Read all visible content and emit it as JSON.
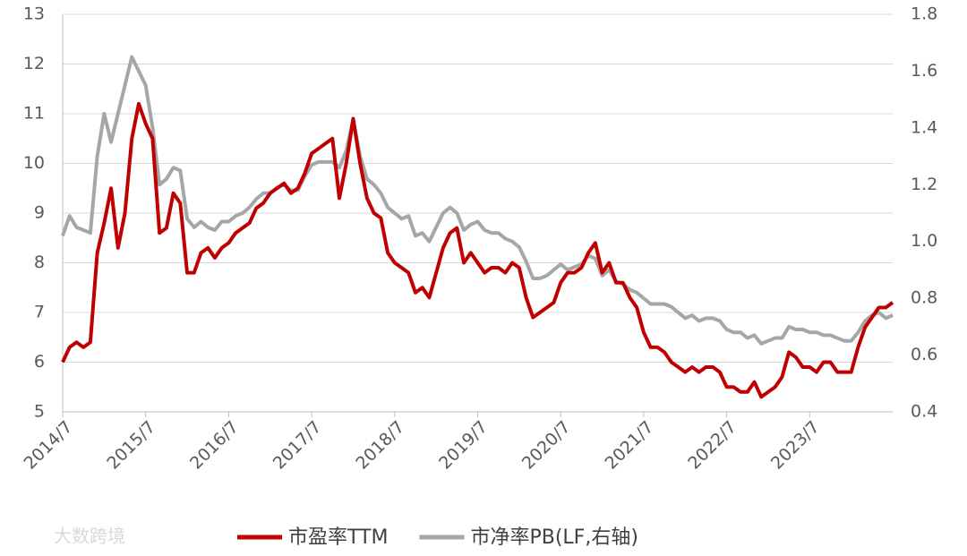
{
  "chart_data": {
    "type": "line",
    "categories": [
      "2014/7",
      null,
      null,
      null,
      null,
      null,
      null,
      null,
      null,
      null,
      null,
      null,
      "2015/7",
      null,
      null,
      null,
      null,
      null,
      null,
      null,
      null,
      null,
      null,
      null,
      "2016/7",
      null,
      null,
      null,
      null,
      null,
      null,
      null,
      null,
      null,
      null,
      null,
      "2017/7",
      null,
      null,
      null,
      null,
      null,
      null,
      null,
      null,
      null,
      null,
      null,
      "2018/7",
      null,
      null,
      null,
      null,
      null,
      null,
      null,
      null,
      null,
      null,
      null,
      "2019/7",
      null,
      null,
      null,
      null,
      null,
      null,
      null,
      null,
      null,
      null,
      null,
      "2020/7",
      null,
      null,
      null,
      null,
      null,
      null,
      null,
      null,
      null,
      null,
      null,
      "2021/7",
      null,
      null,
      null,
      null,
      null,
      null,
      null,
      null,
      null,
      null,
      null,
      "2022/7",
      null,
      null,
      null,
      null,
      null,
      null,
      null,
      null,
      null,
      null,
      null,
      "2023/7",
      null,
      null,
      null,
      null,
      null,
      null,
      null,
      null,
      null,
      null,
      null,
      null
    ],
    "series": [
      {
        "name": "市盈率TTM",
        "color": "#c00000",
        "values": [
          6.0,
          6.3,
          6.4,
          6.3,
          6.4,
          8.2,
          8.8,
          9.5,
          8.3,
          9.0,
          10.5,
          11.2,
          10.8,
          10.5,
          8.6,
          8.7,
          9.4,
          9.2,
          7.8,
          7.8,
          8.2,
          8.3,
          8.1,
          8.3,
          8.4,
          8.6,
          8.7,
          8.8,
          9.1,
          9.2,
          9.4,
          9.5,
          9.6,
          9.4,
          9.5,
          9.8,
          10.2,
          10.3,
          10.4,
          10.5,
          9.3,
          10.0,
          10.9,
          10.0,
          9.3,
          9.0,
          8.9,
          8.2,
          8.0,
          7.9,
          7.8,
          7.4,
          7.5,
          7.3,
          7.8,
          8.3,
          8.6,
          8.7,
          8.0,
          8.2,
          8.0,
          7.8,
          7.9,
          7.9,
          7.8,
          8.0,
          7.9,
          7.3,
          6.9,
          7.0,
          7.1,
          7.2,
          7.6,
          7.8,
          7.8,
          7.9,
          8.2,
          8.4,
          7.8,
          8.0,
          7.6,
          7.6,
          7.3,
          7.1,
          6.6,
          6.3,
          6.3,
          6.2,
          6.0,
          5.9,
          5.8,
          5.9,
          5.8,
          5.9,
          5.9,
          5.8,
          5.5,
          5.5,
          5.4,
          5.4,
          5.6,
          5.3,
          5.4,
          5.5,
          5.7,
          6.2,
          6.1,
          5.9,
          5.9,
          5.8,
          6.0,
          6.0,
          5.8,
          5.8,
          5.8,
          6.3,
          6.7,
          6.9,
          7.1,
          7.1,
          7.2
        ]
      },
      {
        "name": "市净率PB(LF,右轴)",
        "color": "#a6a6a6",
        "axis": "y2",
        "values": [
          1.02,
          1.09,
          1.05,
          1.04,
          1.03,
          1.3,
          1.45,
          1.35,
          1.45,
          1.55,
          1.65,
          1.6,
          1.55,
          1.4,
          1.2,
          1.22,
          1.26,
          1.25,
          1.08,
          1.05,
          1.07,
          1.05,
          1.04,
          1.07,
          1.07,
          1.09,
          1.1,
          1.12,
          1.15,
          1.17,
          1.17,
          1.19,
          1.2,
          1.18,
          1.18,
          1.23,
          1.27,
          1.28,
          1.28,
          1.28,
          1.26,
          1.32,
          1.43,
          1.3,
          1.22,
          1.2,
          1.17,
          1.12,
          1.1,
          1.08,
          1.09,
          1.02,
          1.03,
          1.0,
          1.05,
          1.1,
          1.12,
          1.1,
          1.04,
          1.06,
          1.07,
          1.04,
          1.03,
          1.03,
          1.01,
          1.0,
          0.98,
          0.93,
          0.87,
          0.87,
          0.88,
          0.9,
          0.92,
          0.9,
          0.91,
          0.92,
          0.95,
          0.94,
          0.88,
          0.9,
          0.86,
          0.85,
          0.83,
          0.82,
          0.8,
          0.78,
          0.78,
          0.78,
          0.77,
          0.75,
          0.73,
          0.74,
          0.72,
          0.73,
          0.73,
          0.72,
          0.69,
          0.68,
          0.68,
          0.66,
          0.67,
          0.64,
          0.65,
          0.66,
          0.66,
          0.7,
          0.69,
          0.69,
          0.68,
          0.68,
          0.67,
          0.67,
          0.66,
          0.65,
          0.65,
          0.68,
          0.72,
          0.74,
          0.75,
          0.73,
          0.74
        ]
      }
    ],
    "ylim": [
      5,
      13
    ],
    "yticks": [
      5,
      6,
      7,
      8,
      9,
      10,
      11,
      12,
      13
    ],
    "y2lim": [
      0.4,
      1.8
    ],
    "y2ticks": [
      0.4,
      0.6,
      0.8,
      {
        "value": 1,
        "label": "1.0"
      },
      1.2,
      1.4,
      1.6,
      1.8
    ],
    "grid": true,
    "legend": "bottom"
  },
  "watermark": "大数跨境"
}
